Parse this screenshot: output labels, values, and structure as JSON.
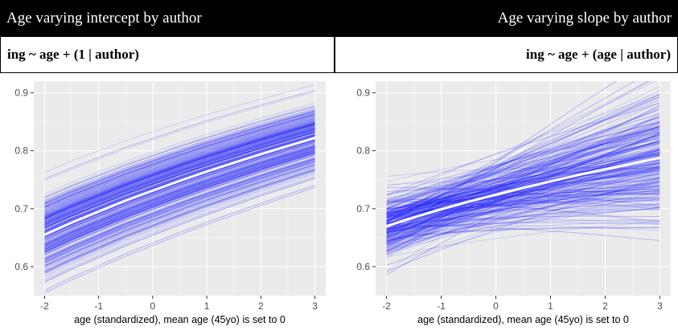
{
  "panels": [
    {
      "title": "Age varying intercept by author",
      "formula": "ing ~ age + (1 | author)"
    },
    {
      "title": "Age varying slope by author",
      "formula": "ing ~ age + (age | author)"
    }
  ],
  "chart_data": [
    {
      "type": "line",
      "title": "Age varying intercept by author",
      "subtitle": "ing ~ age + (1 | author)",
      "xlabel": "age (standardized), mean age (45yo) is set to 0",
      "ylabel": "",
      "xlim": [
        -2.2,
        3.2
      ],
      "ylim": [
        0.55,
        0.92
      ],
      "x_ticks": [
        "-2",
        "-1",
        "0",
        "1",
        "2",
        "3"
      ],
      "y_ticks": [
        "0.6",
        "0.7",
        "0.8",
        "0.9"
      ],
      "grid": true,
      "series": [
        {
          "role": "population mean",
          "x": [
            -2,
            -1.5,
            -1,
            -0.5,
            0,
            0.5,
            1,
            1.5,
            2,
            2.5,
            3
          ],
          "values": [
            0.655,
            0.676,
            0.695,
            0.714,
            0.731,
            0.748,
            0.764,
            0.779,
            0.794,
            0.808,
            0.822
          ],
          "color": "#ffffff"
        },
        {
          "role": "author-level posterior draws",
          "count": 300,
          "intercept_spread_at_x0": [
            0.62,
            0.84
          ],
          "color": "#1a1aff"
        }
      ]
    },
    {
      "type": "line",
      "title": "Age varying slope by author",
      "subtitle": "ing ~ age + (age | author)",
      "xlabel": "age (standardized), mean age (45yo) is set to 0",
      "ylabel": "",
      "xlim": [
        -2.2,
        3.2
      ],
      "ylim": [
        0.55,
        0.92
      ],
      "x_ticks": [
        "-2",
        "-1",
        "0",
        "1",
        "2",
        "3"
      ],
      "y_ticks": [
        "0.6",
        "0.7",
        "0.8",
        "0.9"
      ],
      "grid": true,
      "series": [
        {
          "role": "population mean",
          "x": [
            -2,
            -1.5,
            -1,
            -0.5,
            0,
            0.5,
            1,
            1.5,
            2,
            2.5,
            3
          ],
          "values": [
            0.67,
            0.685,
            0.699,
            0.712,
            0.724,
            0.736,
            0.747,
            0.758,
            0.768,
            0.778,
            0.788
          ],
          "color": "#ffffff"
        },
        {
          "role": "author-level posterior draws",
          "count": 300,
          "range_at_x_min2": [
            0.56,
            0.75
          ],
          "range_at_x_3": [
            0.59,
            0.91
          ],
          "color": "#1a1aff"
        }
      ]
    }
  ]
}
